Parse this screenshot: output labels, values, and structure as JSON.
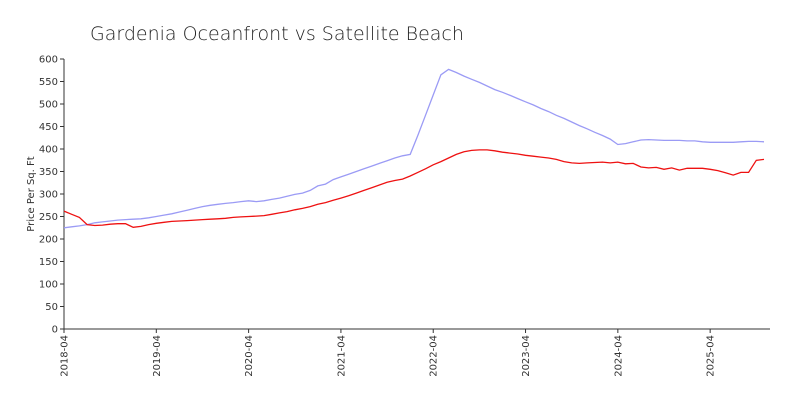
{
  "chart_data": {
    "type": "line",
    "title": "Gardenia Oceanfront vs Satellite Beach",
    "y_label": "Price Per Sq. Ft",
    "x": [
      "2018-04",
      "2018-05",
      "2018-06",
      "2018-07",
      "2018-08",
      "2018-09",
      "2018-10",
      "2018-11",
      "2018-12",
      "2019-01",
      "2019-02",
      "2019-03",
      "2019-04",
      "2019-05",
      "2019-06",
      "2019-07",
      "2019-08",
      "2019-09",
      "2019-10",
      "2019-11",
      "2019-12",
      "2020-01",
      "2020-02",
      "2020-03",
      "2020-04",
      "2020-05",
      "2020-06",
      "2020-07",
      "2020-08",
      "2020-09",
      "2020-10",
      "2020-11",
      "2020-12",
      "2021-01",
      "2021-02",
      "2021-03",
      "2021-04",
      "2021-05",
      "2021-06",
      "2021-07",
      "2021-08",
      "2021-09",
      "2021-10",
      "2021-11",
      "2021-12",
      "2022-01",
      "2022-02",
      "2022-03",
      "2022-04",
      "2022-05",
      "2022-06",
      "2022-07",
      "2022-08",
      "2022-09",
      "2022-10",
      "2022-11",
      "2022-12",
      "2023-01",
      "2023-02",
      "2023-03",
      "2023-04",
      "2023-05",
      "2023-06",
      "2023-07",
      "2023-08",
      "2023-09",
      "2023-10",
      "2023-11",
      "2023-12",
      "2024-01",
      "2024-02",
      "2024-03",
      "2024-04",
      "2024-05",
      "2024-06",
      "2024-07",
      "2024-08",
      "2024-09",
      "2024-10",
      "2024-11",
      "2024-12",
      "2025-01",
      "2025-02",
      "2025-03",
      "2025-04",
      "2025-05",
      "2025-06",
      "2025-07",
      "2025-08",
      "2025-09",
      "2025-10",
      "2025-11"
    ],
    "xticks": [
      "2018-04",
      "2019-04",
      "2020-04",
      "2021-04",
      "2022-04",
      "2023-04",
      "2024-04",
      "2025-04"
    ],
    "series": [
      {
        "color": "#9b9bf5",
        "values": [
          225,
          227,
          229,
          232,
          236,
          238,
          240,
          242,
          243,
          244,
          245,
          247,
          250,
          253,
          256,
          260,
          264,
          268,
          272,
          275,
          277,
          279,
          281,
          283,
          285,
          283,
          285,
          288,
          291,
          295,
          299,
          302,
          308,
          318,
          322,
          332,
          338,
          344,
          350,
          356,
          362,
          368,
          374,
          380,
          385,
          388,
          430,
          475,
          520,
          565,
          577,
          570,
          562,
          555,
          548,
          540,
          532,
          526,
          519,
          512,
          505,
          498,
          490,
          483,
          475,
          468,
          460,
          452,
          445,
          437,
          430,
          422,
          410,
          412,
          416,
          420,
          421,
          420,
          419,
          419,
          419,
          418,
          418,
          416,
          415,
          415,
          415,
          415,
          416,
          417,
          417,
          416
        ]
      },
      {
        "color": "#ee1111",
        "values": [
          262,
          255,
          248,
          232,
          230,
          231,
          233,
          234,
          234,
          226,
          228,
          232,
          235,
          237,
          239,
          240,
          241,
          242,
          243,
          244,
          245,
          246,
          248,
          249,
          250,
          251,
          252,
          255,
          258,
          261,
          265,
          268,
          272,
          277,
          281,
          286,
          291,
          296,
          302,
          308,
          314,
          320,
          326,
          330,
          333,
          340,
          348,
          356,
          365,
          372,
          380,
          388,
          394,
          397,
          398,
          398,
          396,
          393,
          391,
          389,
          386,
          384,
          382,
          380,
          377,
          372,
          369,
          368,
          369,
          370,
          371,
          369,
          371,
          367,
          368,
          360,
          358,
          359,
          355,
          358,
          353,
          357,
          357,
          357,
          355,
          352,
          347,
          342,
          348,
          348,
          375,
          377
        ]
      }
    ],
    "ylim": [
      0,
      600
    ],
    "yticks": [
      0,
      50,
      100,
      150,
      200,
      250,
      300,
      350,
      400,
      450,
      500,
      550,
      600
    ],
    "grid": false
  }
}
